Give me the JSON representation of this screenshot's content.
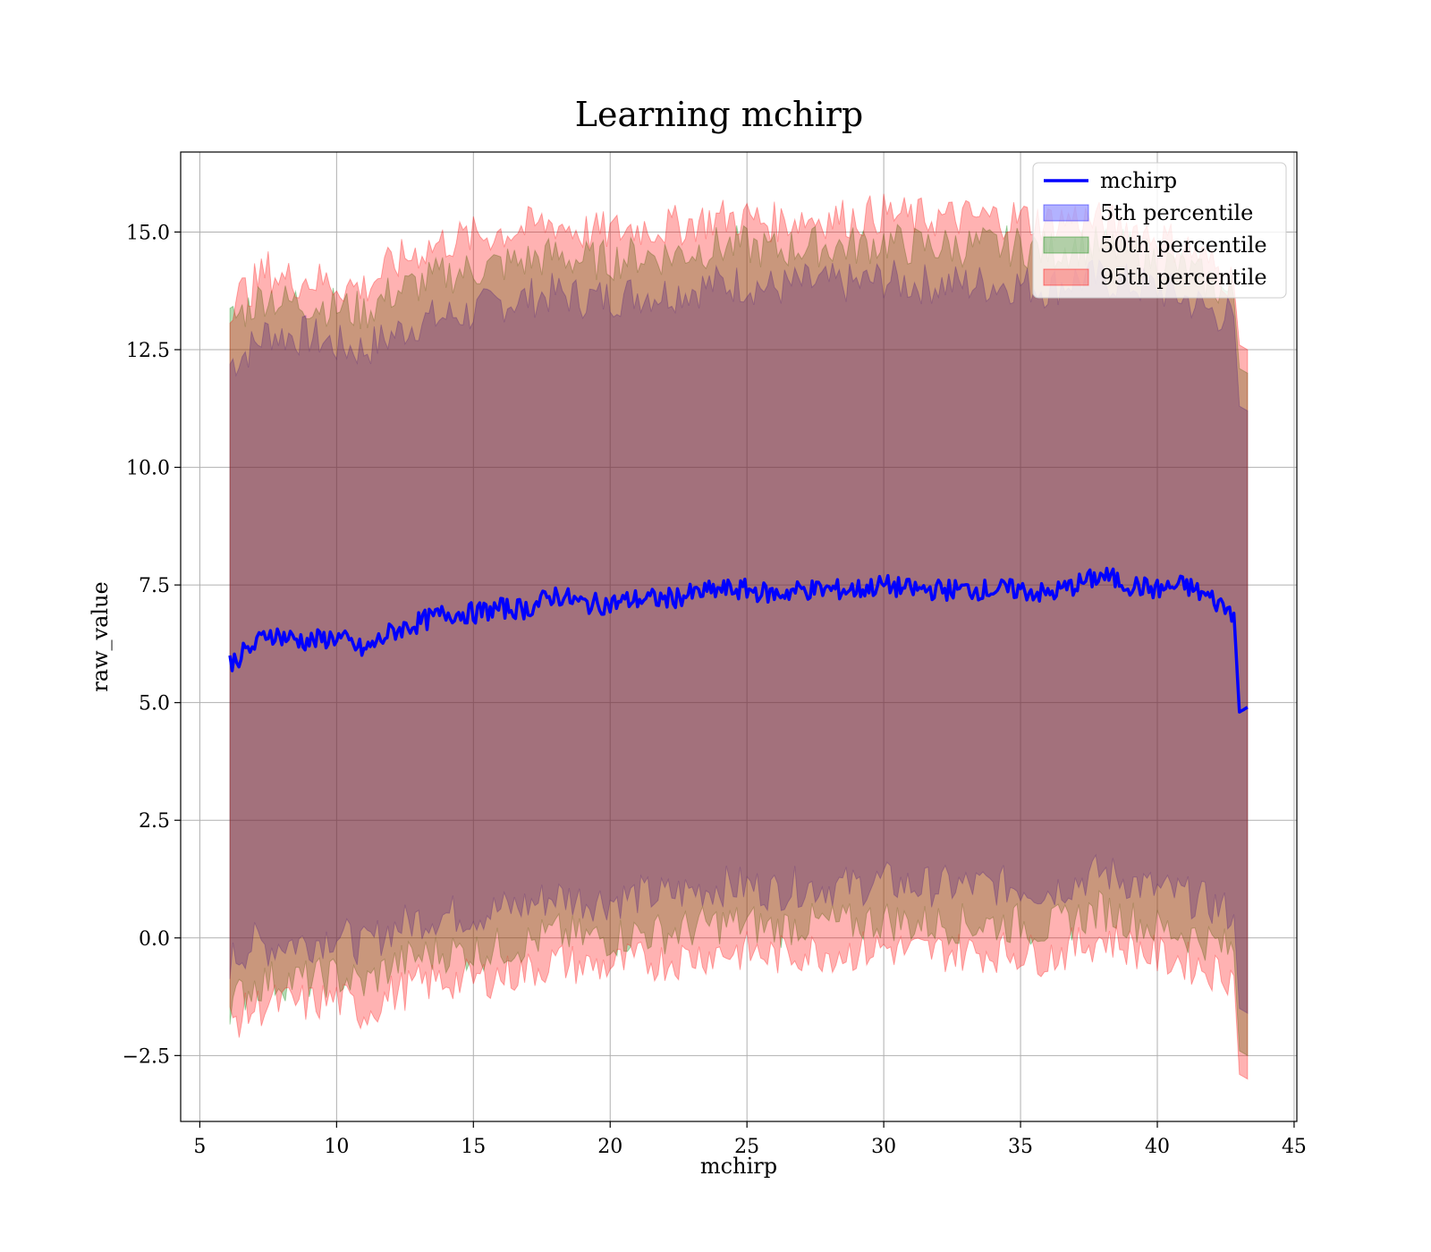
{
  "chart_data": {
    "type": "area",
    "title": "Learning mchirp",
    "xlabel": "mchirp",
    "ylabel": "raw_value",
    "xlim": [
      4.3,
      45.1
    ],
    "ylim": [
      -3.9,
      16.7
    ],
    "xticks": [
      5,
      10,
      15,
      20,
      25,
      30,
      35,
      40,
      45
    ],
    "xtick_labels": [
      "5",
      "10",
      "15",
      "20",
      "25",
      "30",
      "35",
      "40",
      "45"
    ],
    "yticks": [
      -2.5,
      0.0,
      2.5,
      5.0,
      7.5,
      10.0,
      12.5,
      15.0
    ],
    "ytick_labels": [
      "−2.5",
      "0.0",
      "2.5",
      "5.0",
      "7.5",
      "10.0",
      "12.5",
      "15.0"
    ],
    "grid": true,
    "legend_position": "top-right",
    "legend": [
      "mchirp",
      "5th percentile",
      "50th percentile",
      "95th percentile"
    ],
    "line": {
      "name": "mchirp",
      "color": "#0000ff",
      "x": [
        6.1,
        7.0,
        7.5,
        8.0,
        9.0,
        10.0,
        11.0,
        12.0,
        13.0,
        14.0,
        15.0,
        16.0,
        17.0,
        18.0,
        19.0,
        20.0,
        21.0,
        22.0,
        23.0,
        24.0,
        25.0,
        26.0,
        27.0,
        28.0,
        29.0,
        30.0,
        31.0,
        32.0,
        33.0,
        34.0,
        35.0,
        36.0,
        37.0,
        38.0,
        39.0,
        40.0,
        41.0,
        42.0,
        42.8,
        43.0,
        43.3
      ],
      "y": [
        5.85,
        6.2,
        6.5,
        6.4,
        6.3,
        6.4,
        6.1,
        6.5,
        6.7,
        6.9,
        6.9,
        7.0,
        7.0,
        7.3,
        7.1,
        7.1,
        7.2,
        7.2,
        7.3,
        7.4,
        7.4,
        7.3,
        7.4,
        7.4,
        7.4,
        7.5,
        7.4,
        7.4,
        7.4,
        7.4,
        7.4,
        7.3,
        7.5,
        7.7,
        7.5,
        7.4,
        7.5,
        7.2,
        6.9,
        4.8,
        4.9
      ]
    },
    "bands": [
      {
        "name": "5th percentile",
        "color": "#0000ff",
        "opacity": 0.3,
        "x": [
          6.1,
          7.0,
          7.5,
          8.0,
          9.0,
          10.0,
          11.0,
          12.0,
          13.0,
          14.0,
          15.0,
          16.0,
          17.0,
          18.0,
          19.0,
          20.0,
          21.0,
          22.0,
          23.0,
          24.0,
          25.0,
          26.0,
          27.0,
          28.0,
          29.0,
          30.0,
          31.0,
          32.0,
          33.0,
          34.0,
          35.0,
          36.0,
          37.0,
          38.0,
          39.0,
          40.0,
          41.0,
          42.0,
          42.8,
          43.0,
          43.3
        ],
        "upper": [
          12.2,
          12.6,
          12.9,
          12.8,
          12.8,
          12.6,
          12.5,
          12.8,
          13.1,
          13.2,
          13.3,
          13.5,
          13.6,
          13.7,
          13.6,
          13.6,
          13.7,
          13.7,
          13.8,
          13.9,
          13.9,
          13.8,
          13.9,
          13.9,
          13.9,
          14.0,
          13.9,
          13.9,
          13.9,
          13.9,
          13.9,
          13.8,
          14.0,
          14.0,
          13.9,
          13.8,
          13.6,
          13.3,
          13.2,
          11.3,
          11.2
        ],
        "lower": [
          -0.5,
          -0.1,
          -0.2,
          -0.1,
          -0.1,
          0.1,
          -0.2,
          0.2,
          0.4,
          0.5,
          0.5,
          0.6,
          0.7,
          0.9,
          0.8,
          0.8,
          0.9,
          0.9,
          1.0,
          1.1,
          1.1,
          1.0,
          1.1,
          1.1,
          1.1,
          1.2,
          1.1,
          1.1,
          1.1,
          1.1,
          1.1,
          1.0,
          1.2,
          1.4,
          1.2,
          1.0,
          0.9,
          0.7,
          0.5,
          -1.5,
          -1.6
        ]
      },
      {
        "name": "50th percentile",
        "color": "#008000",
        "opacity": 0.3,
        "x": [
          6.1,
          7.0,
          7.5,
          8.0,
          9.0,
          10.0,
          11.0,
          12.0,
          13.0,
          14.0,
          15.0,
          16.0,
          17.0,
          18.0,
          19.0,
          20.0,
          21.0,
          22.0,
          23.0,
          24.0,
          25.0,
          26.0,
          27.0,
          28.0,
          29.0,
          30.0,
          31.0,
          32.0,
          33.0,
          34.0,
          35.0,
          36.0,
          37.0,
          38.0,
          39.0,
          40.0,
          41.0,
          42.0,
          42.8,
          43.0,
          43.3
        ],
        "upper": [
          13.1,
          13.5,
          13.7,
          13.5,
          13.5,
          13.4,
          13.3,
          13.7,
          13.9,
          14.1,
          14.2,
          14.3,
          14.4,
          14.5,
          14.4,
          14.4,
          14.5,
          14.5,
          14.6,
          14.7,
          14.7,
          14.6,
          14.7,
          14.7,
          14.7,
          14.8,
          14.7,
          14.7,
          14.7,
          14.7,
          14.7,
          14.6,
          14.7,
          14.7,
          14.6,
          14.4,
          14.2,
          13.9,
          13.6,
          12.1,
          12.0
        ],
        "lower": [
          -1.4,
          -1.0,
          -0.9,
          -0.9,
          -0.9,
          -0.8,
          -1.0,
          -0.6,
          -0.4,
          -0.3,
          -0.3,
          -0.2,
          -0.1,
          0.1,
          0.0,
          0.0,
          0.1,
          0.1,
          0.2,
          0.3,
          0.3,
          0.2,
          0.3,
          0.3,
          0.3,
          0.4,
          0.3,
          0.3,
          0.3,
          0.3,
          0.3,
          0.2,
          0.4,
          0.6,
          0.4,
          0.2,
          0.1,
          -0.1,
          -0.3,
          -2.4,
          -2.5
        ]
      },
      {
        "name": "95th percentile",
        "color": "#ff0000",
        "opacity": 0.3,
        "x": [
          6.1,
          7.0,
          7.5,
          8.0,
          9.0,
          10.0,
          11.0,
          12.0,
          13.0,
          14.0,
          15.0,
          16.0,
          17.0,
          18.0,
          19.0,
          20.0,
          21.0,
          22.0,
          23.0,
          24.0,
          25.0,
          26.0,
          27.0,
          28.0,
          29.0,
          30.0,
          31.0,
          32.0,
          33.0,
          34.0,
          35.0,
          36.0,
          37.0,
          38.0,
          39.0,
          40.0,
          41.0,
          42.0,
          42.8,
          43.0,
          43.3
        ],
        "upper": [
          13.5,
          13.9,
          14.2,
          14.0,
          14.0,
          13.9,
          13.8,
          14.3,
          14.6,
          14.8,
          14.9,
          15.0,
          15.1,
          15.2,
          15.0,
          15.0,
          15.1,
          15.1,
          15.2,
          15.3,
          15.3,
          15.2,
          15.3,
          15.3,
          15.3,
          15.4,
          15.3,
          15.3,
          15.3,
          15.3,
          15.3,
          15.2,
          15.3,
          15.2,
          15.1,
          14.9,
          14.7,
          14.3,
          13.9,
          12.6,
          12.5
        ],
        "lower": [
          -1.8,
          -1.5,
          -1.4,
          -1.4,
          -1.4,
          -1.3,
          -1.6,
          -1.2,
          -1.0,
          -0.9,
          -0.9,
          -0.8,
          -0.7,
          -0.5,
          -0.6,
          -0.6,
          -0.5,
          -0.5,
          -0.4,
          -0.3,
          -0.3,
          -0.4,
          -0.3,
          -0.3,
          -0.3,
          -0.2,
          -0.3,
          -0.3,
          -0.3,
          -0.3,
          -0.3,
          -0.4,
          -0.2,
          0.0,
          -0.2,
          -0.4,
          -0.5,
          -0.7,
          -0.8,
          -2.9,
          -3.0
        ]
      }
    ]
  }
}
